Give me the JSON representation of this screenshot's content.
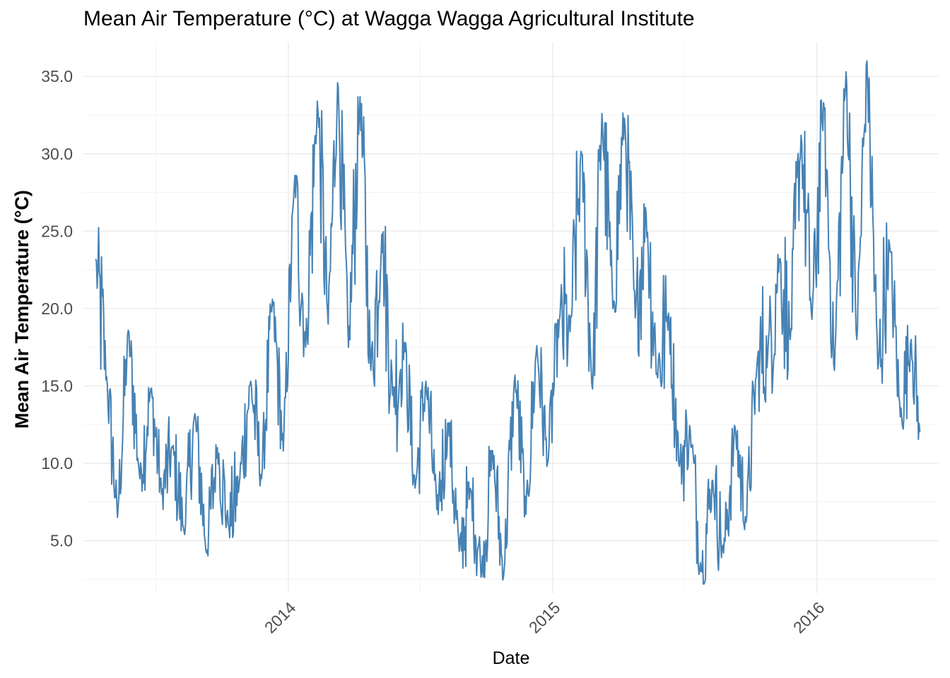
{
  "chart_data": {
    "type": "line",
    "title": "Mean Air Temperature (°C) at Wagga Wagga Agricultural Institute",
    "xlabel": "Date",
    "ylabel": "Mean Air Temperature (°C)",
    "x_ticks": [
      "2014",
      "2015",
      "2016"
    ],
    "y_ticks": [
      "5.0",
      "10.0",
      "15.0",
      "20.0",
      "25.0",
      "30.0",
      "35.0"
    ],
    "ylim": [
      1.6,
      37.2
    ],
    "xlim": [
      "2013-03-24",
      "2016-06-17"
    ],
    "grid": true,
    "line_color": "#4682B4",
    "series": [
      {
        "x": [
          "2013-04-10",
          "2013-04-25",
          "2013-05-10",
          "2013-05-25",
          "2013-06-10",
          "2013-06-25",
          "2013-07-10",
          "2013-07-25",
          "2013-08-10",
          "2013-08-25",
          "2013-09-10",
          "2013-09-25",
          "2013-10-10",
          "2013-10-25",
          "2013-11-10",
          "2013-11-25",
          "2013-12-10",
          "2013-12-25",
          "2014-01-10",
          "2014-01-25",
          "2014-02-10",
          "2014-02-25",
          "2014-03-10",
          "2014-03-25",
          "2014-04-10",
          "2014-04-25",
          "2014-05-10",
          "2014-05-25",
          "2014-06-10",
          "2014-06-25",
          "2014-07-10",
          "2014-07-25",
          "2014-08-10",
          "2014-08-25",
          "2014-09-10",
          "2014-09-25",
          "2014-10-10",
          "2014-10-25",
          "2014-11-10",
          "2014-11-25",
          "2014-12-10",
          "2014-12-25",
          "2015-01-10",
          "2015-01-25",
          "2015-02-10",
          "2015-02-25",
          "2015-03-10",
          "2015-03-25",
          "2015-04-10",
          "2015-04-25",
          "2015-05-10",
          "2015-05-25",
          "2015-06-10",
          "2015-06-25",
          "2015-07-10",
          "2015-07-25",
          "2015-08-10",
          "2015-08-25",
          "2015-09-10",
          "2015-09-25",
          "2015-10-10",
          "2015-10-25",
          "2015-11-10",
          "2015-11-25",
          "2015-12-10",
          "2015-12-25",
          "2016-01-10",
          "2016-01-25",
          "2016-02-10",
          "2016-02-25",
          "2016-03-10",
          "2016-03-25",
          "2016-04-10",
          "2016-04-25",
          "2016-05-10",
          "2016-05-22"
        ],
        "y": [
          23.2,
          15.6,
          6.5,
          18.6,
          9.0,
          14.8,
          8.0,
          11.0,
          5.6,
          13.2,
          4.2,
          11.0,
          6.0,
          8.6,
          15.3,
          9.0,
          20.6,
          10.8,
          28.6,
          17.5,
          33.4,
          19.0,
          34.6,
          17.5,
          33.7,
          16.0,
          24.8,
          14.4,
          17.8,
          8.4,
          15.3,
          7.0,
          12.6,
          4.3,
          8.3,
          3.0,
          10.8,
          2.6,
          15.7,
          6.7,
          17.6,
          10.0,
          19.2,
          18.5,
          30.0,
          14.8,
          32.6,
          20.0,
          32.3,
          19.4,
          26.2,
          15.8,
          19.7,
          9.8,
          12.1,
          3.0,
          8.9,
          4.2,
          12.3,
          6.2,
          16.3,
          17.1,
          23.2,
          18.0,
          31.2,
          19.3,
          33.3,
          16.0,
          35.3,
          18.0,
          36.0,
          16.1,
          24.2,
          13.0,
          18.0,
          12.0
        ]
      }
    ]
  }
}
